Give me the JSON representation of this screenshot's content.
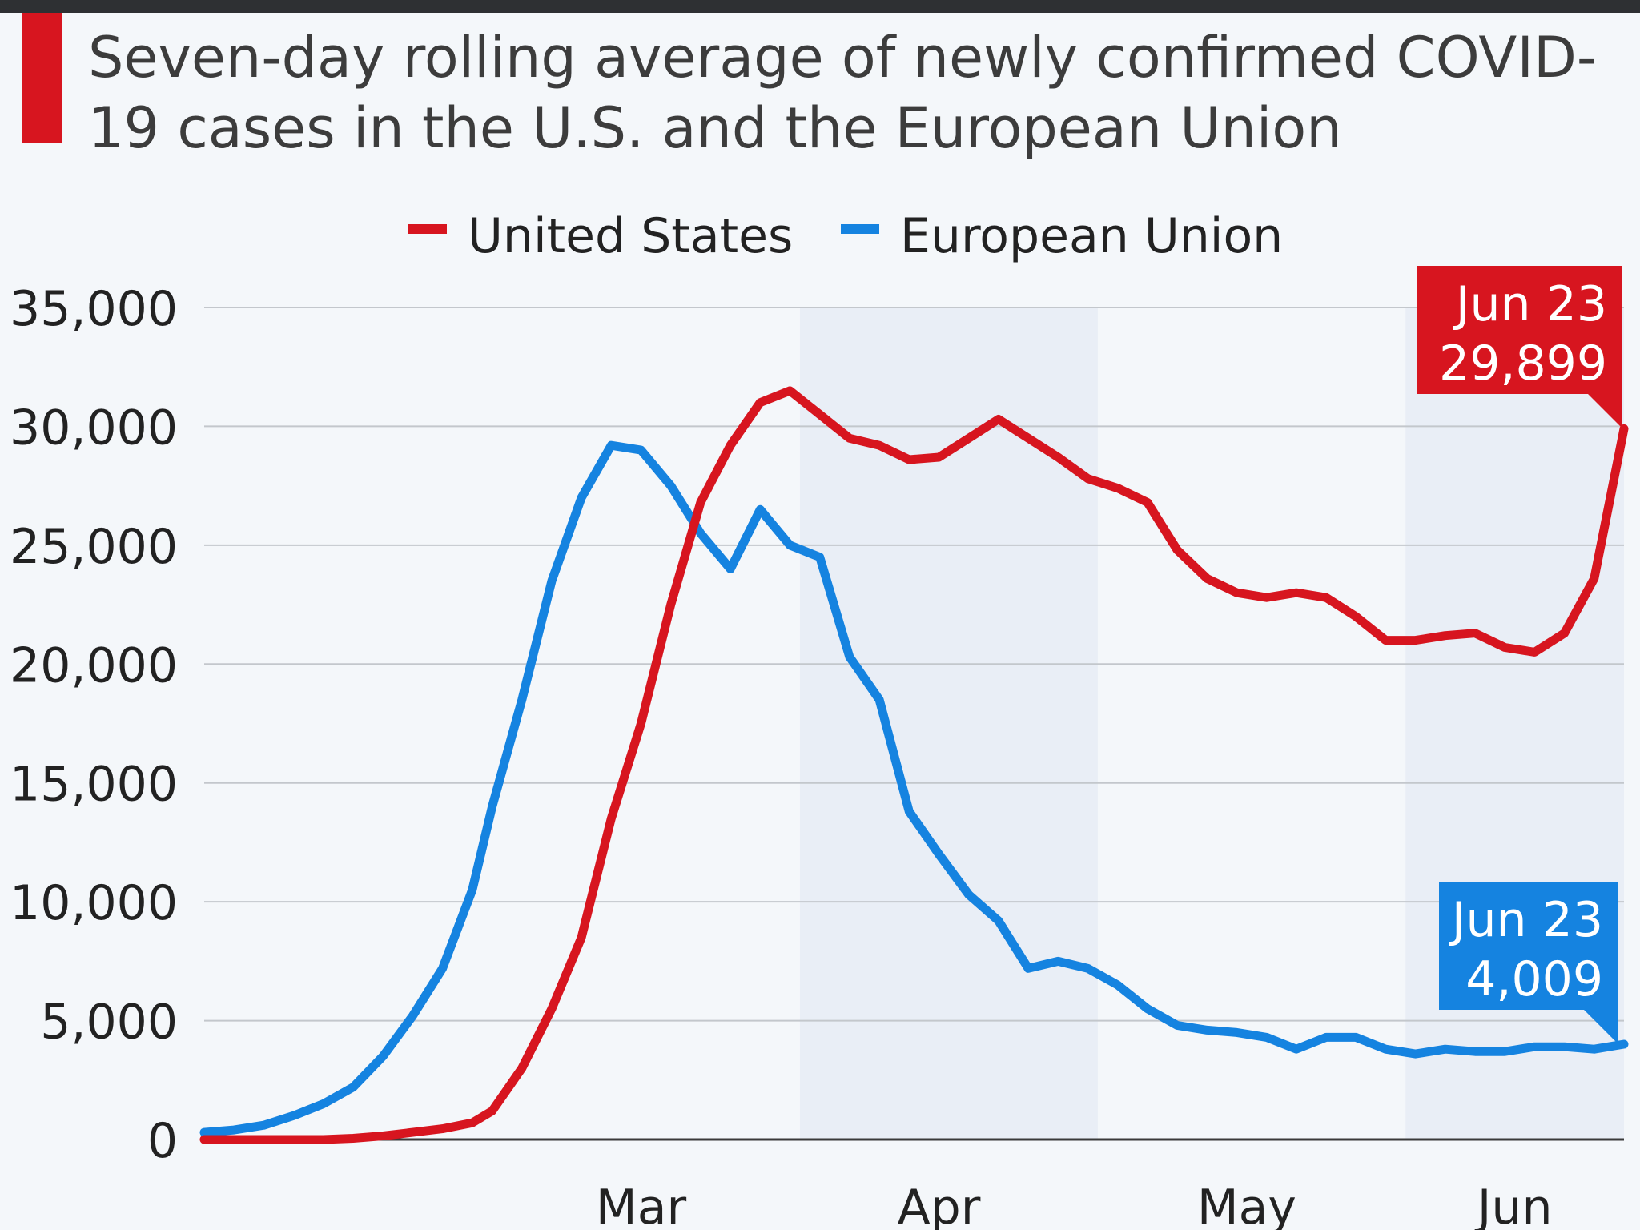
{
  "title": "Seven-day rolling average of newly confirmed COVID-19 cases in the U.S. and the European Union",
  "colors": {
    "us": "#d7151f",
    "eu": "#1583e0",
    "band": "#e9eef6",
    "grid": "#c3c7cc"
  },
  "chart_data": {
    "type": "line",
    "x": [
      "Feb 1",
      "Feb 4",
      "Feb 7",
      "Feb 10",
      "Feb 13",
      "Feb 16",
      "Feb 19",
      "Feb 22",
      "Feb 25",
      "Feb 28",
      "Mar 1",
      "Mar 4",
      "Mar 7",
      "Mar 10",
      "Mar 13",
      "Mar 16",
      "Mar 19",
      "Mar 22",
      "Mar 25",
      "Mar 28",
      "Mar 31",
      "Apr 3",
      "Apr 6",
      "Apr 9",
      "Apr 12",
      "Apr 15",
      "Apr 18",
      "Apr 21",
      "Apr 24",
      "Apr 27",
      "Apr 30",
      "May 3",
      "May 6",
      "May 9",
      "May 12",
      "May 15",
      "May 18",
      "May 21",
      "May 24",
      "May 27",
      "May 30",
      "Jun 2",
      "Jun 5",
      "Jun 8",
      "Jun 11",
      "Jun 14",
      "Jun 17",
      "Jun 20",
      "Jun 23"
    ],
    "series": [
      {
        "name": "United States",
        "values": [
          0,
          0,
          0,
          0,
          0,
          50,
          150,
          300,
          450,
          700,
          1200,
          3000,
          5500,
          8500,
          13500,
          17500,
          22500,
          26800,
          29200,
          31000,
          31500,
          30500,
          29500,
          29200,
          28600,
          28700,
          29500,
          30300,
          29500,
          28700,
          27800,
          27400,
          26800,
          24800,
          23600,
          23000,
          22800,
          23000,
          22800,
          22000,
          21000,
          21000,
          21200,
          21300,
          20700,
          20500,
          21300,
          23600,
          29899
        ]
      },
      {
        "name": "European Union",
        "values": [
          300,
          400,
          600,
          1000,
          1500,
          2200,
          3500,
          5200,
          7200,
          10500,
          14000,
          18500,
          23500,
          27000,
          29200,
          29000,
          27500,
          25500,
          24000,
          26500,
          25000,
          24500,
          20300,
          18500,
          13800,
          12000,
          10300,
          9200,
          7200,
          7500,
          7200,
          6500,
          5500,
          4800,
          4600,
          4500,
          4300,
          3800,
          4300,
          4300,
          3800,
          3600,
          3800,
          3700,
          3700,
          3900,
          3900,
          3800,
          4009
        ]
      }
    ],
    "callouts": [
      {
        "series": "United States",
        "date": "Jun 23",
        "value": "29,899"
      },
      {
        "series": "European Union",
        "date": "Jun 23",
        "value": "4,009"
      }
    ],
    "month_labels": [
      "Mar",
      "Apr",
      "May",
      "Jun"
    ],
    "month_starts": [
      "Mar 1",
      "Apr 1",
      "May 1",
      "Jun 1"
    ],
    "month_centers": [
      "Mar 16",
      "Apr 15",
      "May 16",
      "Jun 12"
    ],
    "shaded_months": [
      "Apr",
      "Jun"
    ],
    "y_ticks": [
      "0",
      "5,000",
      "10,000",
      "15,000",
      "20,000",
      "25,000",
      "30,000",
      "35,000"
    ],
    "ylim": [
      0,
      35000
    ],
    "xlim": [
      "Feb 1",
      "Jun 23"
    ],
    "legend_position": "top-center",
    "grid": true
  }
}
